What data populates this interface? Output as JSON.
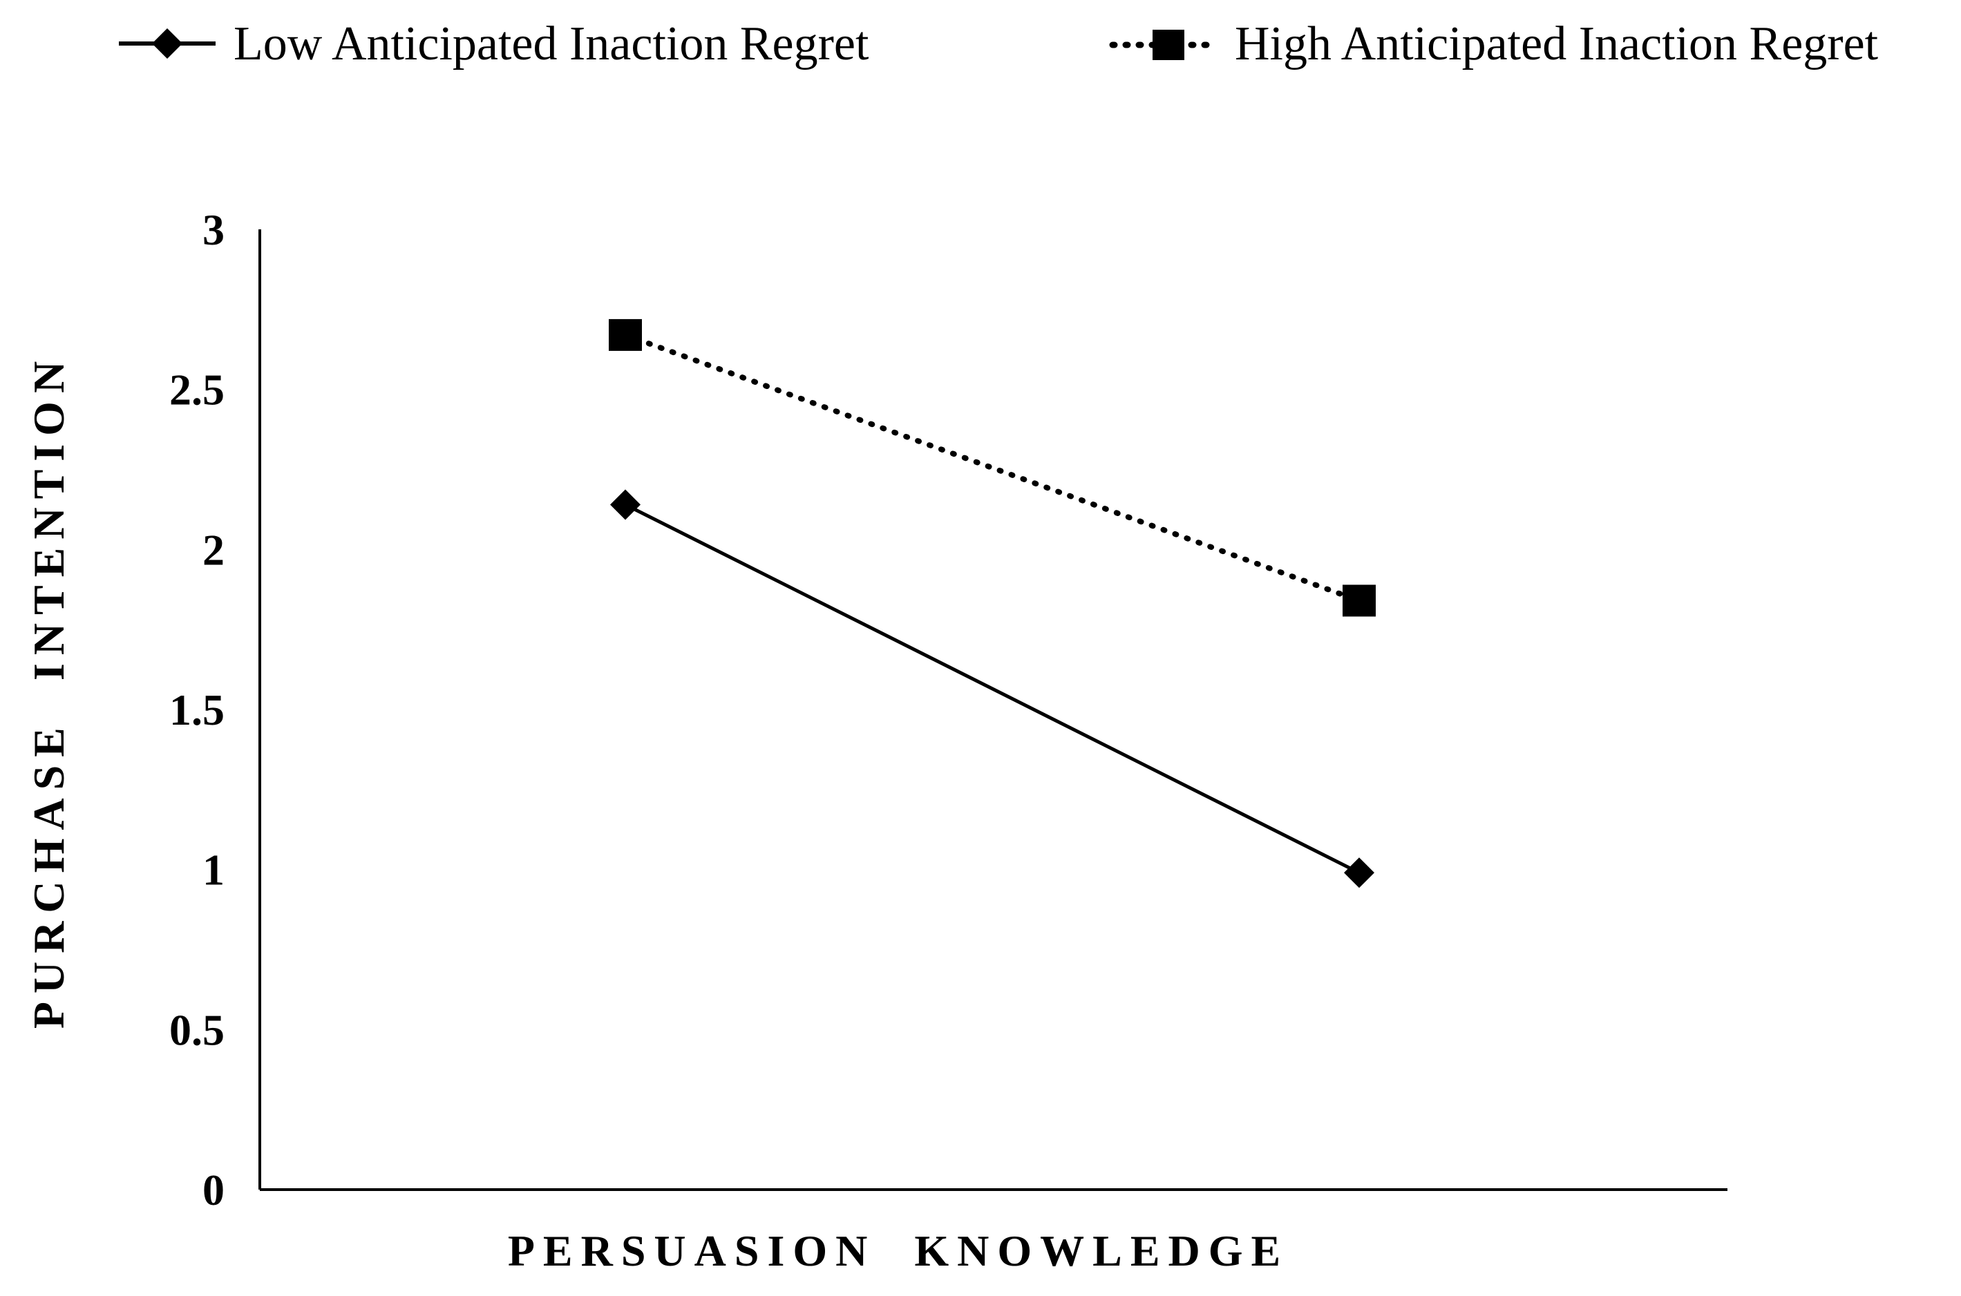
{
  "chart_data": {
    "type": "line",
    "title": "",
    "xlabel": "PERSUASION  KNOWLEDGE",
    "ylabel": "PURCHASE  INTENTION",
    "ylim": [
      0,
      3
    ],
    "yticks": [
      "0",
      "0.5",
      "1",
      "1.5",
      "2",
      "2.5",
      "3"
    ],
    "x_positions": [
      1,
      2
    ],
    "grid": false,
    "legend_placement": "top",
    "series": [
      {
        "name": "Low Anticipated Inaction Regret",
        "values": [
          2.14,
          0.99
        ],
        "line_style": "solid",
        "marker": "diamond",
        "color": "#000000"
      },
      {
        "name": "High Anticipated Inaction Regret",
        "values": [
          2.67,
          1.84
        ],
        "line_style": "dotted",
        "marker": "square",
        "color": "#000000"
      }
    ]
  }
}
